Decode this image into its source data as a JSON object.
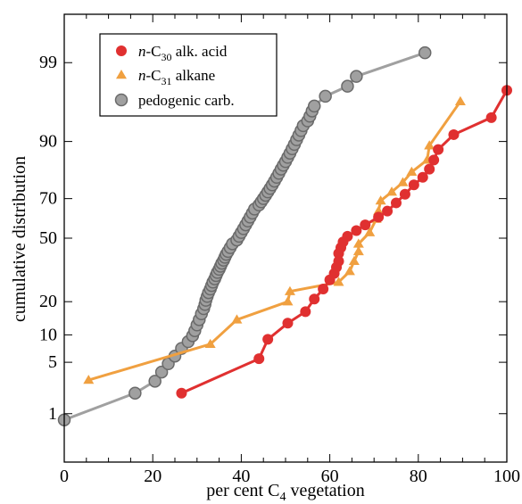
{
  "chart_data": {
    "type": "line",
    "title": "",
    "xlabel": "per cent C",
    "xlabel_sub": "4",
    "xlabel_suffix": " vegetation",
    "ylabel": "cumulative distribution",
    "xlim": [
      0,
      100
    ],
    "x_ticks": [
      0,
      20,
      40,
      60,
      80,
      100
    ],
    "y_scale": "probability",
    "y_ticks": [
      1,
      5,
      10,
      20,
      50,
      70,
      90,
      99
    ],
    "ylim": [
      0.15,
      99.85
    ],
    "grid": false,
    "legend_position": "top-left",
    "series": [
      {
        "key": "acid",
        "legend": {
          "prefix": "n",
          "main": "-C",
          "sub": "30",
          "rest": "  alk. acid"
        },
        "color": "#e03030",
        "marker": "circle",
        "points": [
          [
            26.5,
            2.0
          ],
          [
            44,
            5.5
          ],
          [
            46,
            9.0
          ],
          [
            50.5,
            13.0
          ],
          [
            54.5,
            16.5
          ],
          [
            56.5,
            21.0
          ],
          [
            58.5,
            25.0
          ],
          [
            60,
            29.0
          ],
          [
            61,
            32.0
          ],
          [
            61.5,
            35.0
          ],
          [
            62,
            38.0
          ],
          [
            62,
            42.0
          ],
          [
            62.5,
            45.0
          ],
          [
            63,
            48.0
          ],
          [
            64,
            51.0
          ],
          [
            66,
            54.0
          ],
          [
            68,
            57.0
          ],
          [
            71,
            61.0
          ],
          [
            73,
            64.0
          ],
          [
            75,
            68.0
          ],
          [
            77,
            72.0
          ],
          [
            79,
            76.0
          ],
          [
            81,
            79.0
          ],
          [
            82.5,
            82.0
          ],
          [
            83.5,
            85.0
          ],
          [
            84.5,
            88.0
          ],
          [
            88,
            91.5
          ],
          [
            96.5,
            94.5
          ],
          [
            100,
            97.5
          ]
        ]
      },
      {
        "key": "alkane",
        "legend": {
          "prefix": "n",
          "main": "-C",
          "sub": "31",
          "rest": " alkane"
        },
        "color": "#f0a040",
        "marker": "triangle",
        "points": [
          [
            5.5,
            3.0
          ],
          [
            33,
            8.0
          ],
          [
            39,
            14.0
          ],
          [
            50.5,
            20.0
          ],
          [
            51,
            24.0
          ],
          [
            62,
            28.0
          ],
          [
            64.5,
            33.0
          ],
          [
            65.5,
            38.0
          ],
          [
            66.5,
            43.0
          ],
          [
            66.5,
            47.0
          ],
          [
            69,
            53.0
          ],
          [
            70.5,
            60.0
          ],
          [
            71,
            64.0
          ],
          [
            71.5,
            69.0
          ],
          [
            74,
            73.0
          ],
          [
            76.5,
            77.0
          ],
          [
            78.5,
            81.0
          ],
          [
            82,
            85.0
          ],
          [
            82.5,
            89.0
          ],
          [
            89.5,
            96.5
          ]
        ]
      },
      {
        "key": "carb",
        "legend": {
          "prefix": "",
          "main": "pedogenic carb.",
          "sub": "",
          "rest": ""
        },
        "color": "#a0a0a0",
        "marker": "circle-gray",
        "points": [
          [
            0,
            0.8
          ],
          [
            16,
            2.0
          ],
          [
            20.5,
            2.9
          ],
          [
            22,
            3.8
          ],
          [
            23.5,
            4.8
          ],
          [
            25,
            5.9
          ],
          [
            26.5,
            7.2
          ],
          [
            28,
            8.5
          ],
          [
            29,
            9.8
          ],
          [
            29.5,
            11.0
          ],
          [
            30,
            12.5
          ],
          [
            30.5,
            14.0
          ],
          [
            31,
            15.8
          ],
          [
            31.5,
            17.5
          ],
          [
            31.8,
            19.0
          ],
          [
            32,
            20.5
          ],
          [
            32.3,
            22.0
          ],
          [
            32.6,
            23.5
          ],
          [
            33,
            25.0
          ],
          [
            33.3,
            26.5
          ],
          [
            33.6,
            28.0
          ],
          [
            34,
            29.5
          ],
          [
            34.3,
            31.0
          ],
          [
            34.6,
            32.5
          ],
          [
            35,
            34.0
          ],
          [
            35.3,
            35.5
          ],
          [
            35.6,
            37.0
          ],
          [
            36,
            38.5
          ],
          [
            36.3,
            40.0
          ],
          [
            36.6,
            41.5
          ],
          [
            37,
            43.0
          ],
          [
            37.5,
            45.0
          ],
          [
            38,
            47.0
          ],
          [
            39,
            49.0
          ],
          [
            39.5,
            51.0
          ],
          [
            40,
            53.0
          ],
          [
            40.5,
            55.0
          ],
          [
            41,
            57.0
          ],
          [
            41.5,
            59.0
          ],
          [
            42,
            61.0
          ],
          [
            42.5,
            63.0
          ],
          [
            43,
            65.0
          ],
          [
            44,
            67.0
          ],
          [
            44.5,
            68.5
          ],
          [
            45,
            70.0
          ],
          [
            45.5,
            71.5
          ],
          [
            46,
            73.0
          ],
          [
            46.5,
            74.5
          ],
          [
            47,
            76.0
          ],
          [
            47.5,
            77.5
          ],
          [
            48,
            79.0
          ],
          [
            48.5,
            80.5
          ],
          [
            49,
            82.0
          ],
          [
            49.5,
            83.3
          ],
          [
            50,
            84.5
          ],
          [
            50.5,
            85.8
          ],
          [
            51,
            87.0
          ],
          [
            51.5,
            88.2
          ],
          [
            52,
            89.3
          ],
          [
            52.5,
            90.4
          ],
          [
            53,
            91.4
          ],
          [
            53.5,
            92.3
          ],
          [
            54,
            93.2
          ],
          [
            55,
            94.0
          ],
          [
            55.5,
            94.7
          ],
          [
            56,
            95.4
          ],
          [
            56.5,
            96.0
          ],
          [
            59,
            97.0
          ],
          [
            64,
            97.8
          ],
          [
            66,
            98.4
          ],
          [
            81.5,
            99.3
          ]
        ]
      }
    ]
  }
}
